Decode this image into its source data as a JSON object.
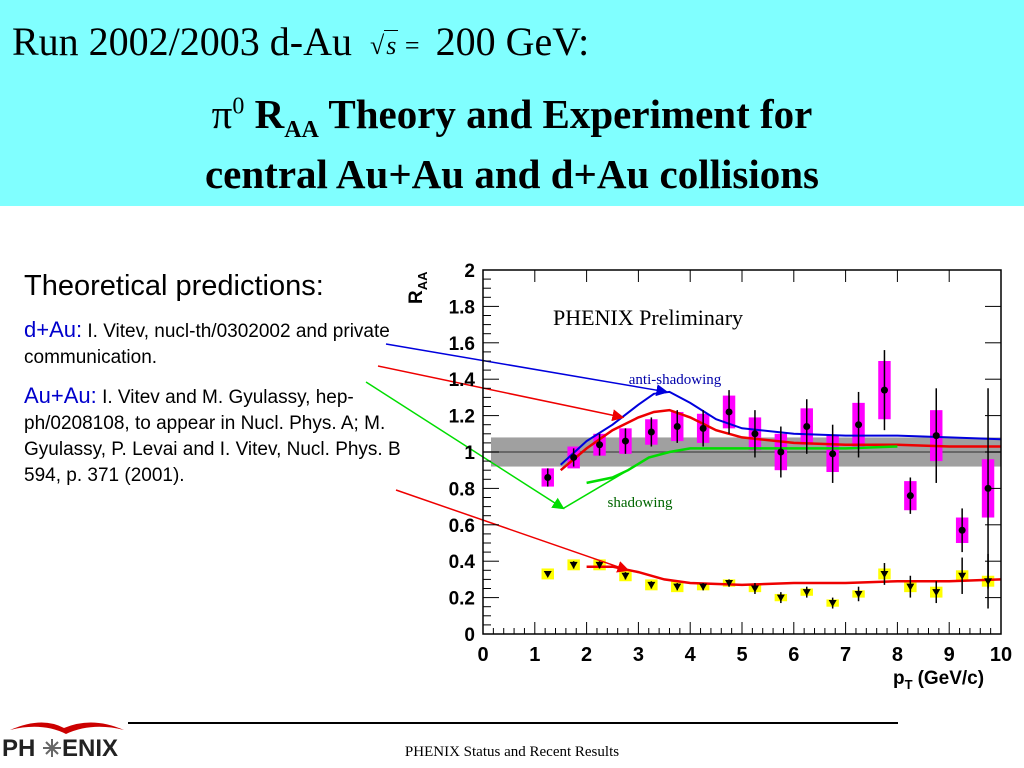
{
  "header": {
    "run_prefix": "Run 2002/2003 d-Au",
    "sqrt_symbol": "√",
    "sqrt_var": "s",
    "sqrt_eq": "=",
    "energy": "200 GeV:",
    "title_pi": "π",
    "title_pi_sup": "0",
    "title_r": "R",
    "title_r_sub": "AA",
    "title_rest": "Theory and Experiment for",
    "title_line2": "central Au+Au and d+Au collisions"
  },
  "left_panel": {
    "heading": "Theoretical predictions:",
    "dau_label": "d+Au:",
    "dau_text": "I. Vitev, nucl-th/0302002 and private communication.",
    "auau_label": "Au+Au:",
    "auau_text": "I. Vitev and M. Gyulassy, hep-ph/0208108, to appear in Nucl. Phys. A; M. Gyulassy, P. Levai and I. Vitev, Nucl. Phys. B 594, p. 371 (2001)."
  },
  "footer": {
    "text": "PHENIX Status and Recent Results",
    "logo_left": "PH",
    "logo_right": "ENIX"
  },
  "colors": {
    "header_bg": "#80ffff",
    "dau_box": "#ff00ff",
    "auau_box": "#ffff00",
    "blue_curve": "#0000dd",
    "red_curve": "#ee0000",
    "green_curve": "#00dd00",
    "gray_band": "#a0a0a0",
    "label_blue": "#0000cc"
  },
  "chart_data": {
    "type": "scatter",
    "title": "PHENIX Preliminary",
    "xlabel": "p",
    "xlabel_sub": "T",
    "xlabel_unit": "(GeV/c)",
    "ylabel": "R",
    "ylabel_sub": "AA",
    "xlim": [
      0,
      10
    ],
    "ylim": [
      0,
      2
    ],
    "x_ticks": [
      "0",
      "1",
      "2",
      "3",
      "4",
      "5",
      "6",
      "7",
      "8",
      "9",
      "10"
    ],
    "y_ticks": [
      "0",
      "0.2",
      "0.4",
      "0.6",
      "0.8",
      "1",
      "1.2",
      "1.4",
      "1.6",
      "1.8",
      "2"
    ],
    "annotations": {
      "anti_shadowing": "anti-shadowing",
      "shadowing": "shadowing"
    },
    "normalization_band": [
      0.92,
      1.08
    ],
    "series": [
      {
        "key": "dau",
        "points": [
          {
            "x": 1.25,
            "y": 0.86,
            "err": 0.05,
            "sys": 0.05
          },
          {
            "x": 1.75,
            "y": 0.97,
            "err": 0.05,
            "sys": 0.06
          },
          {
            "x": 2.25,
            "y": 1.04,
            "err": 0.06,
            "sys": 0.06
          },
          {
            "x": 2.75,
            "y": 1.06,
            "err": 0.07,
            "sys": 0.07
          },
          {
            "x": 3.25,
            "y": 1.11,
            "err": 0.08,
            "sys": 0.07
          },
          {
            "x": 3.75,
            "y": 1.14,
            "err": 0.09,
            "sys": 0.08
          },
          {
            "x": 4.25,
            "y": 1.13,
            "err": 0.1,
            "sys": 0.08
          },
          {
            "x": 4.75,
            "y": 1.22,
            "err": 0.12,
            "sys": 0.09
          },
          {
            "x": 5.25,
            "y": 1.1,
            "err": 0.13,
            "sys": 0.09
          },
          {
            "x": 5.75,
            "y": 1.0,
            "err": 0.14,
            "sys": 0.1
          },
          {
            "x": 6.25,
            "y": 1.14,
            "err": 0.15,
            "sys": 0.1
          },
          {
            "x": 6.75,
            "y": 0.99,
            "err": 0.16,
            "sys": 0.1
          },
          {
            "x": 7.25,
            "y": 1.15,
            "err": 0.18,
            "sys": 0.12
          },
          {
            "x": 7.75,
            "y": 1.34,
            "err": 0.22,
            "sys": 0.16
          },
          {
            "x": 8.25,
            "y": 0.76,
            "err": 0.1,
            "sys": 0.08
          },
          {
            "x": 8.75,
            "y": 1.09,
            "err": 0.26,
            "sys": 0.14
          },
          {
            "x": 9.25,
            "y": 0.57,
            "err": 0.12,
            "sys": 0.07
          },
          {
            "x": 9.75,
            "y": 0.8,
            "err": 0.55,
            "sys": 0.16
          }
        ]
      },
      {
        "key": "auau",
        "points": [
          {
            "x": 1.25,
            "y": 0.33,
            "err": 0.01,
            "sys": 0.03
          },
          {
            "x": 1.75,
            "y": 0.38,
            "err": 0.02,
            "sys": 0.03
          },
          {
            "x": 2.25,
            "y": 0.38,
            "err": 0.02,
            "sys": 0.03
          },
          {
            "x": 2.75,
            "y": 0.32,
            "err": 0.02,
            "sys": 0.03
          },
          {
            "x": 3.25,
            "y": 0.27,
            "err": 0.02,
            "sys": 0.03
          },
          {
            "x": 3.75,
            "y": 0.26,
            "err": 0.02,
            "sys": 0.03
          },
          {
            "x": 4.25,
            "y": 0.26,
            "err": 0.02,
            "sys": 0.02
          },
          {
            "x": 4.75,
            "y": 0.28,
            "err": 0.02,
            "sys": 0.02
          },
          {
            "x": 5.25,
            "y": 0.25,
            "err": 0.03,
            "sys": 0.02
          },
          {
            "x": 5.75,
            "y": 0.2,
            "err": 0.03,
            "sys": 0.02
          },
          {
            "x": 6.25,
            "y": 0.23,
            "err": 0.03,
            "sys": 0.02
          },
          {
            "x": 6.75,
            "y": 0.17,
            "err": 0.03,
            "sys": 0.02
          },
          {
            "x": 7.25,
            "y": 0.22,
            "err": 0.04,
            "sys": 0.02
          },
          {
            "x": 7.75,
            "y": 0.33,
            "err": 0.06,
            "sys": 0.03
          },
          {
            "x": 8.25,
            "y": 0.26,
            "err": 0.06,
            "sys": 0.03
          },
          {
            "x": 8.75,
            "y": 0.23,
            "err": 0.06,
            "sys": 0.03
          },
          {
            "x": 9.25,
            "y": 0.32,
            "err": 0.1,
            "sys": 0.03
          },
          {
            "x": 9.75,
            "y": 0.29,
            "err": 0.15,
            "sys": 0.03
          }
        ]
      }
    ],
    "curves": [
      {
        "key": "anti-shadowing",
        "color": "#0000dd",
        "points": [
          [
            1.5,
            0.93
          ],
          [
            2.0,
            1.06
          ],
          [
            2.5,
            1.15
          ],
          [
            3.0,
            1.26
          ],
          [
            3.3,
            1.32
          ],
          [
            3.6,
            1.33
          ],
          [
            4.0,
            1.27
          ],
          [
            4.5,
            1.18
          ],
          [
            5.0,
            1.13
          ],
          [
            6.0,
            1.1
          ],
          [
            7.0,
            1.09
          ],
          [
            8.0,
            1.09
          ],
          [
            9.0,
            1.08
          ],
          [
            10.0,
            1.07
          ]
        ]
      },
      {
        "key": "dau-central",
        "color": "#ee0000",
        "points": [
          [
            1.5,
            0.9
          ],
          [
            2.0,
            1.02
          ],
          [
            2.5,
            1.12
          ],
          [
            3.0,
            1.19
          ],
          [
            3.3,
            1.22
          ],
          [
            3.6,
            1.23
          ],
          [
            4.0,
            1.19
          ],
          [
            4.5,
            1.12
          ],
          [
            5.0,
            1.08
          ],
          [
            6.0,
            1.05
          ],
          [
            7.0,
            1.04
          ],
          [
            8.0,
            1.04
          ],
          [
            9.0,
            1.03
          ],
          [
            10.0,
            1.03
          ]
        ]
      },
      {
        "key": "shadowing",
        "color": "#00dd00",
        "points": [
          [
            2.0,
            0.83
          ],
          [
            2.5,
            0.86
          ],
          [
            2.8,
            0.9
          ],
          [
            3.2,
            0.97
          ],
          [
            3.6,
            1.0
          ],
          [
            4.0,
            1.02
          ],
          [
            5.0,
            1.02
          ],
          [
            6.0,
            1.02
          ],
          [
            7.0,
            1.02
          ],
          [
            8.0,
            1.03
          ]
        ]
      },
      {
        "key": "auau-theory",
        "color": "#ee0000",
        "points": [
          [
            2.0,
            0.37
          ],
          [
            2.5,
            0.37
          ],
          [
            3.0,
            0.34
          ],
          [
            3.5,
            0.3
          ],
          [
            4.0,
            0.28
          ],
          [
            5.0,
            0.27
          ],
          [
            6.0,
            0.28
          ],
          [
            7.0,
            0.28
          ],
          [
            8.0,
            0.29
          ],
          [
            9.0,
            0.29
          ],
          [
            10.0,
            0.3
          ]
        ]
      }
    ]
  }
}
